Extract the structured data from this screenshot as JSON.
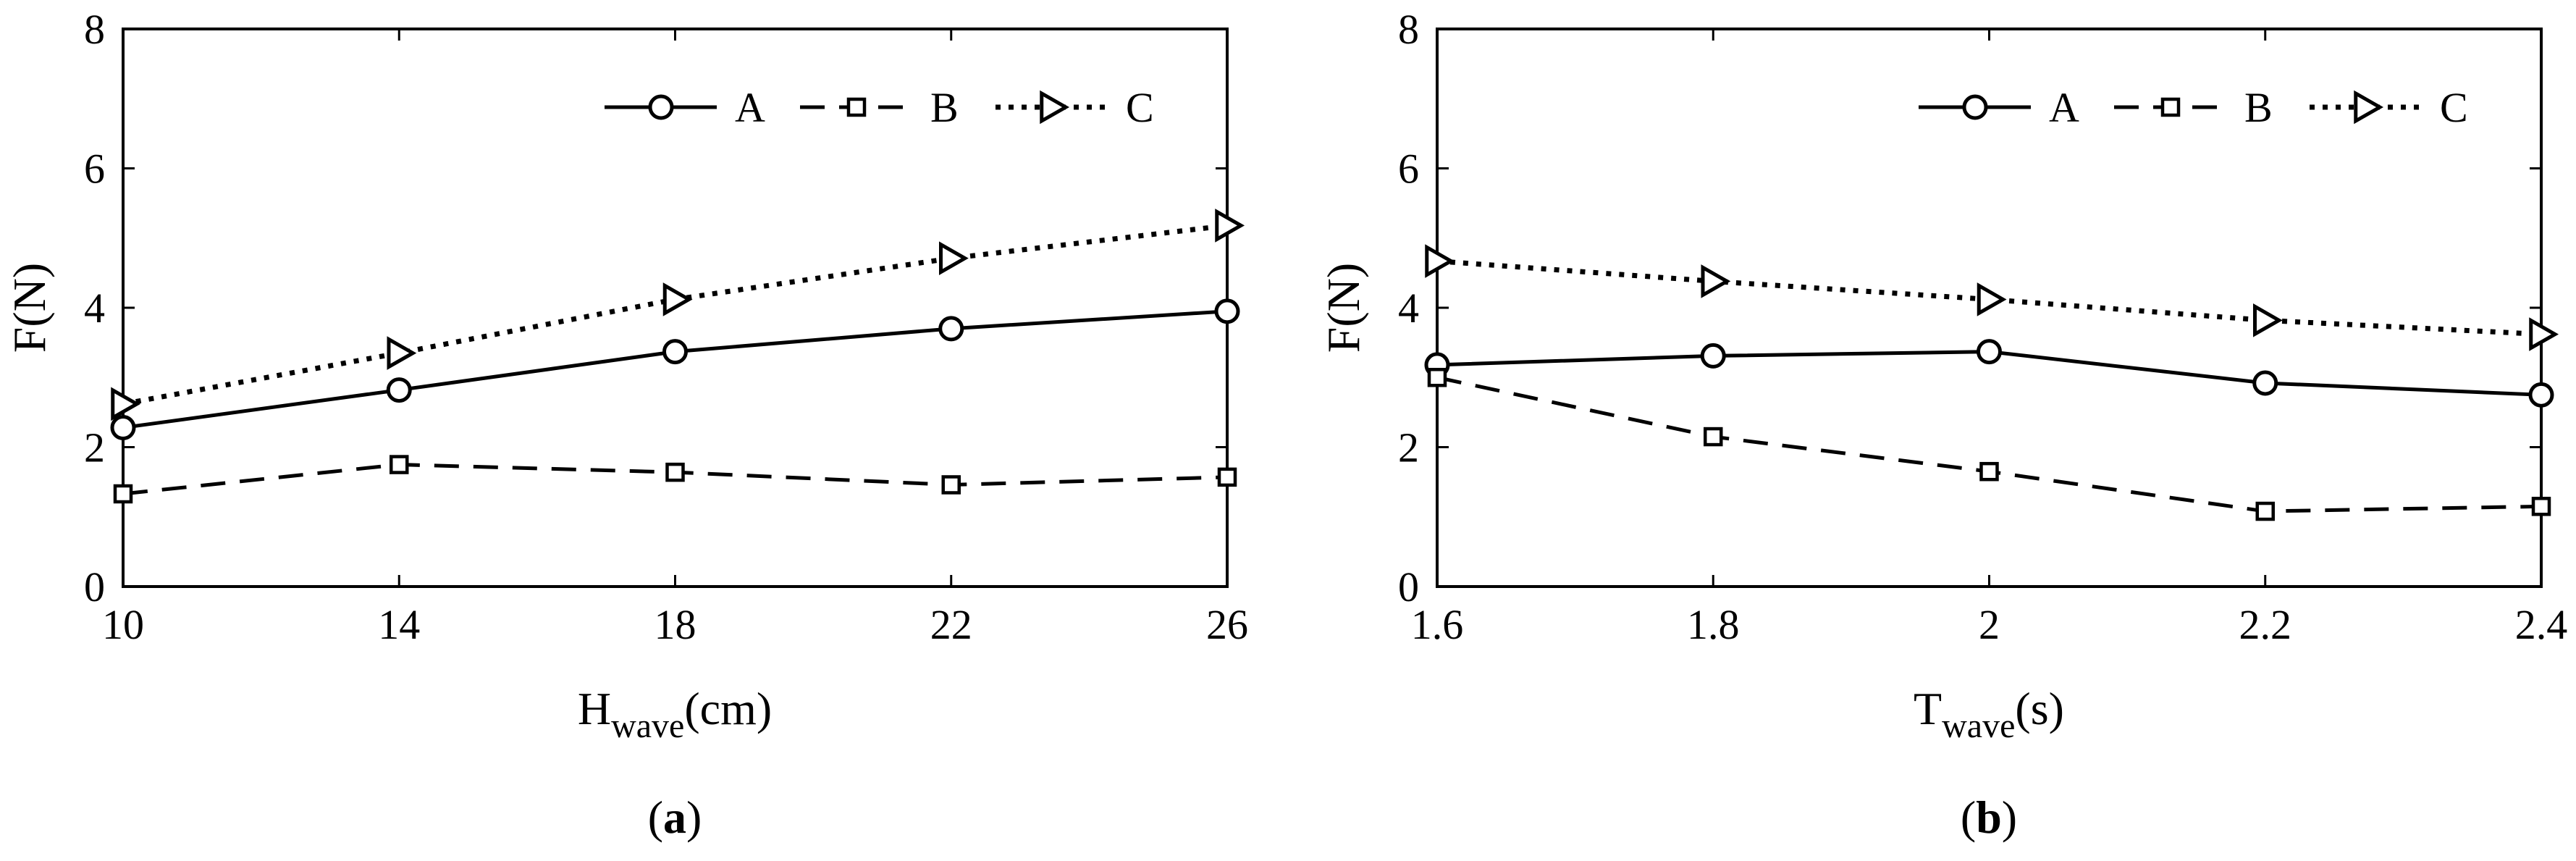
{
  "chart_data": [
    {
      "type": "line",
      "panel_label": "a",
      "x": [
        10,
        14,
        18,
        22,
        26
      ],
      "xticks": [
        "10",
        "14",
        "18",
        "22",
        "26"
      ],
      "xlim": [
        10,
        26
      ],
      "ylim": [
        0,
        8
      ],
      "yticks": [
        "0",
        "2",
        "4",
        "6",
        "8"
      ],
      "xlabel_main": "H",
      "xlabel_sub": "wave",
      "xlabel_unit": "(cm)",
      "ylabel": "F(N)",
      "legend_position": "top-right",
      "series": [
        {
          "name": "A",
          "style": "solid",
          "marker": "circle",
          "values": [
            2.28,
            2.82,
            3.37,
            3.7,
            3.95
          ]
        },
        {
          "name": "B",
          "style": "dashed",
          "marker": "square",
          "values": [
            1.33,
            1.75,
            1.64,
            1.46,
            1.57
          ]
        },
        {
          "name": "C",
          "style": "dotted",
          "marker": "triangle-right",
          "values": [
            2.62,
            3.35,
            4.12,
            4.71,
            5.18
          ]
        }
      ]
    },
    {
      "type": "line",
      "panel_label": "b",
      "x": [
        1.6,
        1.8,
        2.0,
        2.2,
        2.4
      ],
      "xticks": [
        "1.6",
        "1.8",
        "2",
        "2.2",
        "2.4"
      ],
      "xlim": [
        1.6,
        2.4
      ],
      "ylim": [
        0,
        8
      ],
      "yticks": [
        "0",
        "2",
        "4",
        "6",
        "8"
      ],
      "xlabel_main": "T",
      "xlabel_sub": "wave",
      "xlabel_unit": "(s)",
      "ylabel": "F(N)",
      "legend_position": "top-right",
      "series": [
        {
          "name": "A",
          "style": "solid",
          "marker": "circle",
          "values": [
            3.18,
            3.31,
            3.37,
            2.92,
            2.75
          ]
        },
        {
          "name": "B",
          "style": "dashed",
          "marker": "square",
          "values": [
            3.0,
            2.15,
            1.65,
            1.08,
            1.15
          ]
        },
        {
          "name": "C",
          "style": "dotted",
          "marker": "triangle-right",
          "values": [
            4.67,
            4.38,
            4.12,
            3.82,
            3.62
          ]
        }
      ]
    }
  ]
}
